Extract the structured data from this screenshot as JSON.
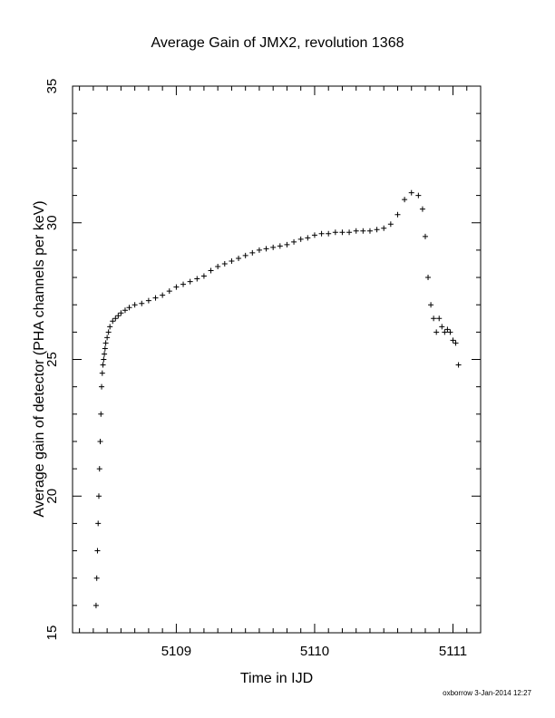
{
  "chart_data": {
    "type": "scatter",
    "title": "Average Gain of JMX2, revolution 1368",
    "xlabel": "Time in IJD",
    "ylabel": "Average gain of detector (PHA channels per keV)",
    "xlim": [
      5108.25,
      5111.2
    ],
    "ylim": [
      15,
      35
    ],
    "xticks": [
      5109,
      5110,
      5111
    ],
    "xtick_labels": [
      "5109",
      "5110",
      "5111"
    ],
    "yticks": [
      15,
      20,
      25,
      30,
      35
    ],
    "ytick_labels": [
      "15",
      "20",
      "25",
      "30",
      "35"
    ],
    "grid": false,
    "marker": "plus",
    "marker_color": "#000000",
    "series": [
      {
        "x": [
          5108.42,
          5108.425,
          5108.43,
          5108.435,
          5108.44,
          5108.445,
          5108.45,
          5108.455,
          5108.46,
          5108.465,
          5108.47,
          5108.475,
          5108.48,
          5108.485,
          5108.49,
          5108.5,
          5108.51,
          5108.52,
          5108.54,
          5108.56,
          5108.58,
          5108.6,
          5108.63,
          5108.66,
          5108.7,
          5108.75,
          5108.8,
          5108.85,
          5108.9,
          5108.95,
          5109.0,
          5109.05,
          5109.1,
          5109.15,
          5109.2,
          5109.25,
          5109.3,
          5109.35,
          5109.4,
          5109.45,
          5109.5,
          5109.55,
          5109.6,
          5109.65,
          5109.7,
          5109.75,
          5109.8,
          5109.85,
          5109.9,
          5109.95,
          5110.0,
          5110.05,
          5110.1,
          5110.15,
          5110.2,
          5110.25,
          5110.3,
          5110.35,
          5110.4,
          5110.45,
          5110.5,
          5110.55,
          5110.6,
          5110.65,
          5110.7,
          5110.75,
          5110.78,
          5110.8,
          5110.82,
          5110.84,
          5110.86,
          5110.88,
          5110.9,
          5110.92,
          5110.94,
          5110.96,
          5110.98,
          5111.0,
          5111.02,
          5111.04
        ],
        "y": [
          16.0,
          17.0,
          18.0,
          19.0,
          20.0,
          21.0,
          22.0,
          23.0,
          24.0,
          24.5,
          24.8,
          25.0,
          25.2,
          25.4,
          25.6,
          25.8,
          26.0,
          26.2,
          26.4,
          26.5,
          26.6,
          26.7,
          26.8,
          26.9,
          27.0,
          27.05,
          27.15,
          27.25,
          27.35,
          27.5,
          27.65,
          27.75,
          27.85,
          27.95,
          28.05,
          28.25,
          28.4,
          28.5,
          28.6,
          28.7,
          28.8,
          28.9,
          29.0,
          29.05,
          29.1,
          29.15,
          29.2,
          29.3,
          29.4,
          29.45,
          29.55,
          29.6,
          29.6,
          29.65,
          29.65,
          29.65,
          29.7,
          29.7,
          29.7,
          29.75,
          29.8,
          29.95,
          30.3,
          30.85,
          31.1,
          31.0,
          30.5,
          29.5,
          28.0,
          27.0,
          26.5,
          26.0,
          26.5,
          26.2,
          26.0,
          26.1,
          26.0,
          25.7,
          25.6,
          24.8
        ]
      }
    ],
    "annotation": "oxborrow  3-Jan-2014 12:27"
  }
}
